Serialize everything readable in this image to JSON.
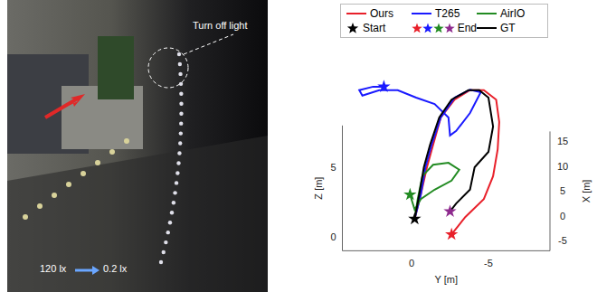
{
  "chart_data": {
    "type": "line3d",
    "xlabel": "X [m]",
    "ylabel": "Y [m]",
    "zlabel": "Z [m]",
    "xlim": [
      -7,
      17
    ],
    "xticks": [
      -5,
      0,
      5,
      10,
      15
    ],
    "ylim": [
      -9,
      4.5
    ],
    "yticks": [
      -5,
      0
    ],
    "zlim": [
      -1,
      8
    ],
    "zticks": [
      0,
      5
    ],
    "grid": false,
    "legend": "top",
    "start_label": "Start",
    "end_label": "End",
    "series": [
      {
        "name": "Ours",
        "color": "#e8202a",
        "x": [
          -3.4,
          -1.3,
          1.4,
          3.1,
          8.6,
          12.2,
          14.1,
          14.1,
          12.2,
          7.7,
          2.2,
          -0.4,
          -2.2,
          -4.4,
          -6.5
        ],
        "y": [
          -0.2,
          -0.6,
          -1.0,
          -1.4,
          -1.9,
          -2.8,
          -3.8,
          -4.7,
          -5.5,
          -5.7,
          -5.6,
          -5.3,
          -4.7,
          -3.5,
          -2.6
        ],
        "z": [
          0,
          1,
          2,
          3,
          3,
          3,
          3,
          3,
          3,
          3,
          3,
          2,
          1,
          0.5,
          0
        ]
      },
      {
        "name": "T265",
        "color": "#1a1aff",
        "x": [
          -3.4,
          -1.3,
          1.4,
          3.1,
          8.6,
          12.6,
          14.2,
          13.7,
          9.5,
          5.9,
          5.0,
          8.6,
          11.3,
          12.6,
          14.1,
          14.1,
          13.0,
          14.1,
          14.8,
          14.8
        ],
        "y": [
          -0.2,
          -0.6,
          -0.9,
          -1.3,
          -1.9,
          -2.8,
          -3.8,
          -4.5,
          -3.8,
          -2.9,
          -2.5,
          -2.4,
          -1.5,
          -0.3,
          0.9,
          2.1,
          3.2,
          3.4,
          2.5,
          1.8
        ],
        "z": [
          0,
          1,
          2,
          3,
          3,
          3,
          3,
          3,
          3,
          3,
          3,
          3,
          3,
          3,
          3,
          3,
          3,
          3,
          3,
          3
        ]
      },
      {
        "name": "AirIO",
        "color": "#228b22",
        "x": [
          -3.4,
          -2.2,
          -0.4,
          1.9,
          2.3,
          0.9,
          -1.3,
          -3.1,
          -3.6,
          -4.3,
          -1.3
        ],
        "y": [
          -0.2,
          -0.4,
          -0.7,
          -1.4,
          -2.4,
          -3.1,
          -2.6,
          -1.5,
          -0.6,
          -0.2,
          0.1
        ],
        "z": [
          0,
          1,
          2,
          2,
          2,
          2,
          2,
          2,
          1.5,
          1,
          1
        ]
      },
      {
        "name": "GT",
        "color": "#000000",
        "x": [
          -3.4,
          -1.3,
          1.4,
          3.1,
          8.6,
          12.2,
          14.1,
          14.1,
          12.6,
          6.8,
          1.7,
          1.4,
          -0.3,
          -1.7,
          -1.9
        ],
        "y": [
          -0.2,
          -0.5,
          -0.8,
          -1.2,
          -1.8,
          -2.6,
          -3.7,
          -4.4,
          -5.0,
          -5.3,
          -5.0,
          -4.1,
          -3.8,
          -2.9,
          -2.5
        ],
        "z": [
          0,
          1,
          2,
          3,
          3,
          3,
          3,
          3,
          3,
          3,
          3,
          2,
          1,
          0.5,
          0
        ]
      }
    ]
  },
  "photo": {
    "annotation": "Turn off light",
    "illuminance": [
      "120 lx",
      "0.2 lx"
    ]
  }
}
